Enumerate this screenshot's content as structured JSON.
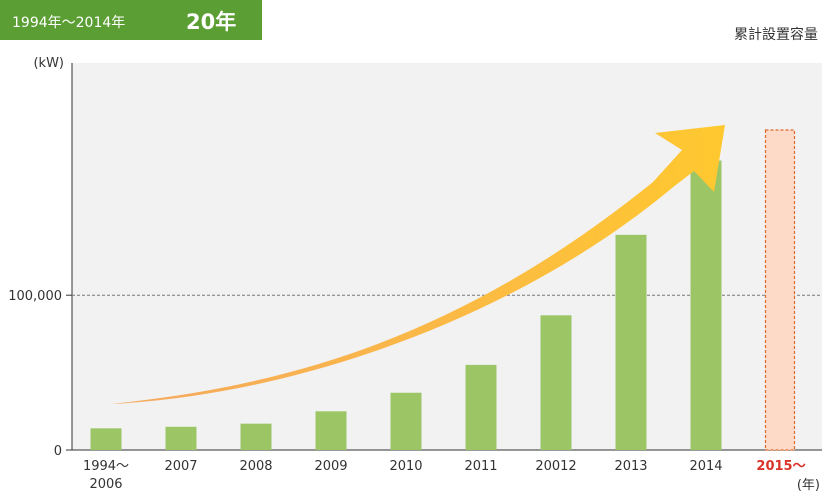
{
  "header": {
    "range": "1994年〜2014年",
    "years": "20年"
  },
  "corner_label": "累計設置容量",
  "colors": {
    "bar": "#9cc565",
    "highlight_bar_fill": "#fdd9c8",
    "highlight_bar_border": "#e06a2a",
    "highlight_text": "#d9332a",
    "arrow_start": "#f5a860",
    "arrow_end": "#ffc82f",
    "plot_bg": "#f2f2f2",
    "badge": "#5a9e34"
  },
  "chart_data": {
    "type": "bar",
    "categories": [
      "1994〜2006",
      "2007",
      "2008",
      "2009",
      "2010",
      "2011",
      "20012",
      "2013",
      "2014",
      "2015〜"
    ],
    "values": [
      14000,
      15000,
      17000,
      25000,
      37000,
      55000,
      87000,
      139000,
      187000,
      null
    ],
    "highlight_category": "2015〜",
    "ylabel": "(kW)",
    "xunit": "(年)",
    "yticks": [
      0,
      100000
    ],
    "ytick_labels": [
      "0",
      "100,000"
    ],
    "ylim": [
      0,
      250000
    ],
    "reference_line": 100000,
    "annotation": "growth-arrow"
  }
}
